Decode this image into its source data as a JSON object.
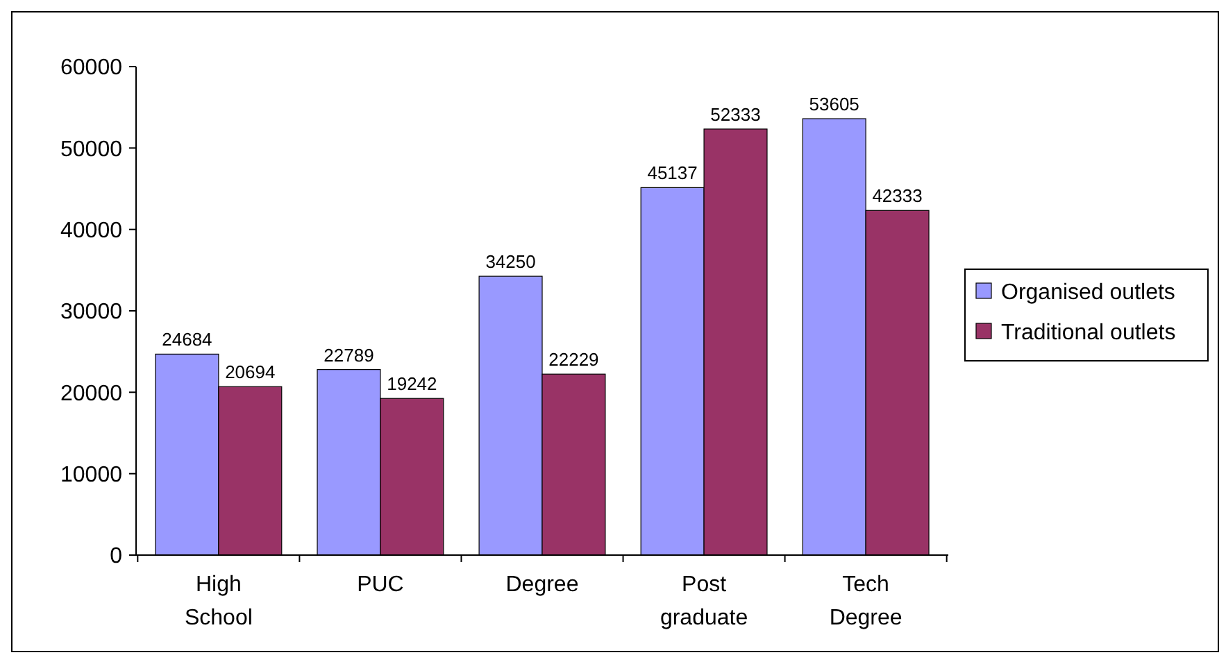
{
  "chart_data": {
    "type": "bar",
    "categories": [
      "High School",
      "PUC",
      "Degree",
      "Post graduate",
      "Tech Degree"
    ],
    "series": [
      {
        "name": "Organised outlets",
        "color": "#9999ff",
        "values": [
          24684,
          22789,
          34250,
          45137,
          53605
        ]
      },
      {
        "name": "Traditional outlets",
        "color": "#993366",
        "values": [
          20694,
          19242,
          22229,
          52333,
          42333
        ]
      }
    ],
    "ylim": [
      0,
      60000
    ],
    "yticks": [
      0,
      10000,
      20000,
      30000,
      40000,
      50000,
      60000
    ],
    "data_labels": true,
    "legend": "right",
    "grid": false
  }
}
